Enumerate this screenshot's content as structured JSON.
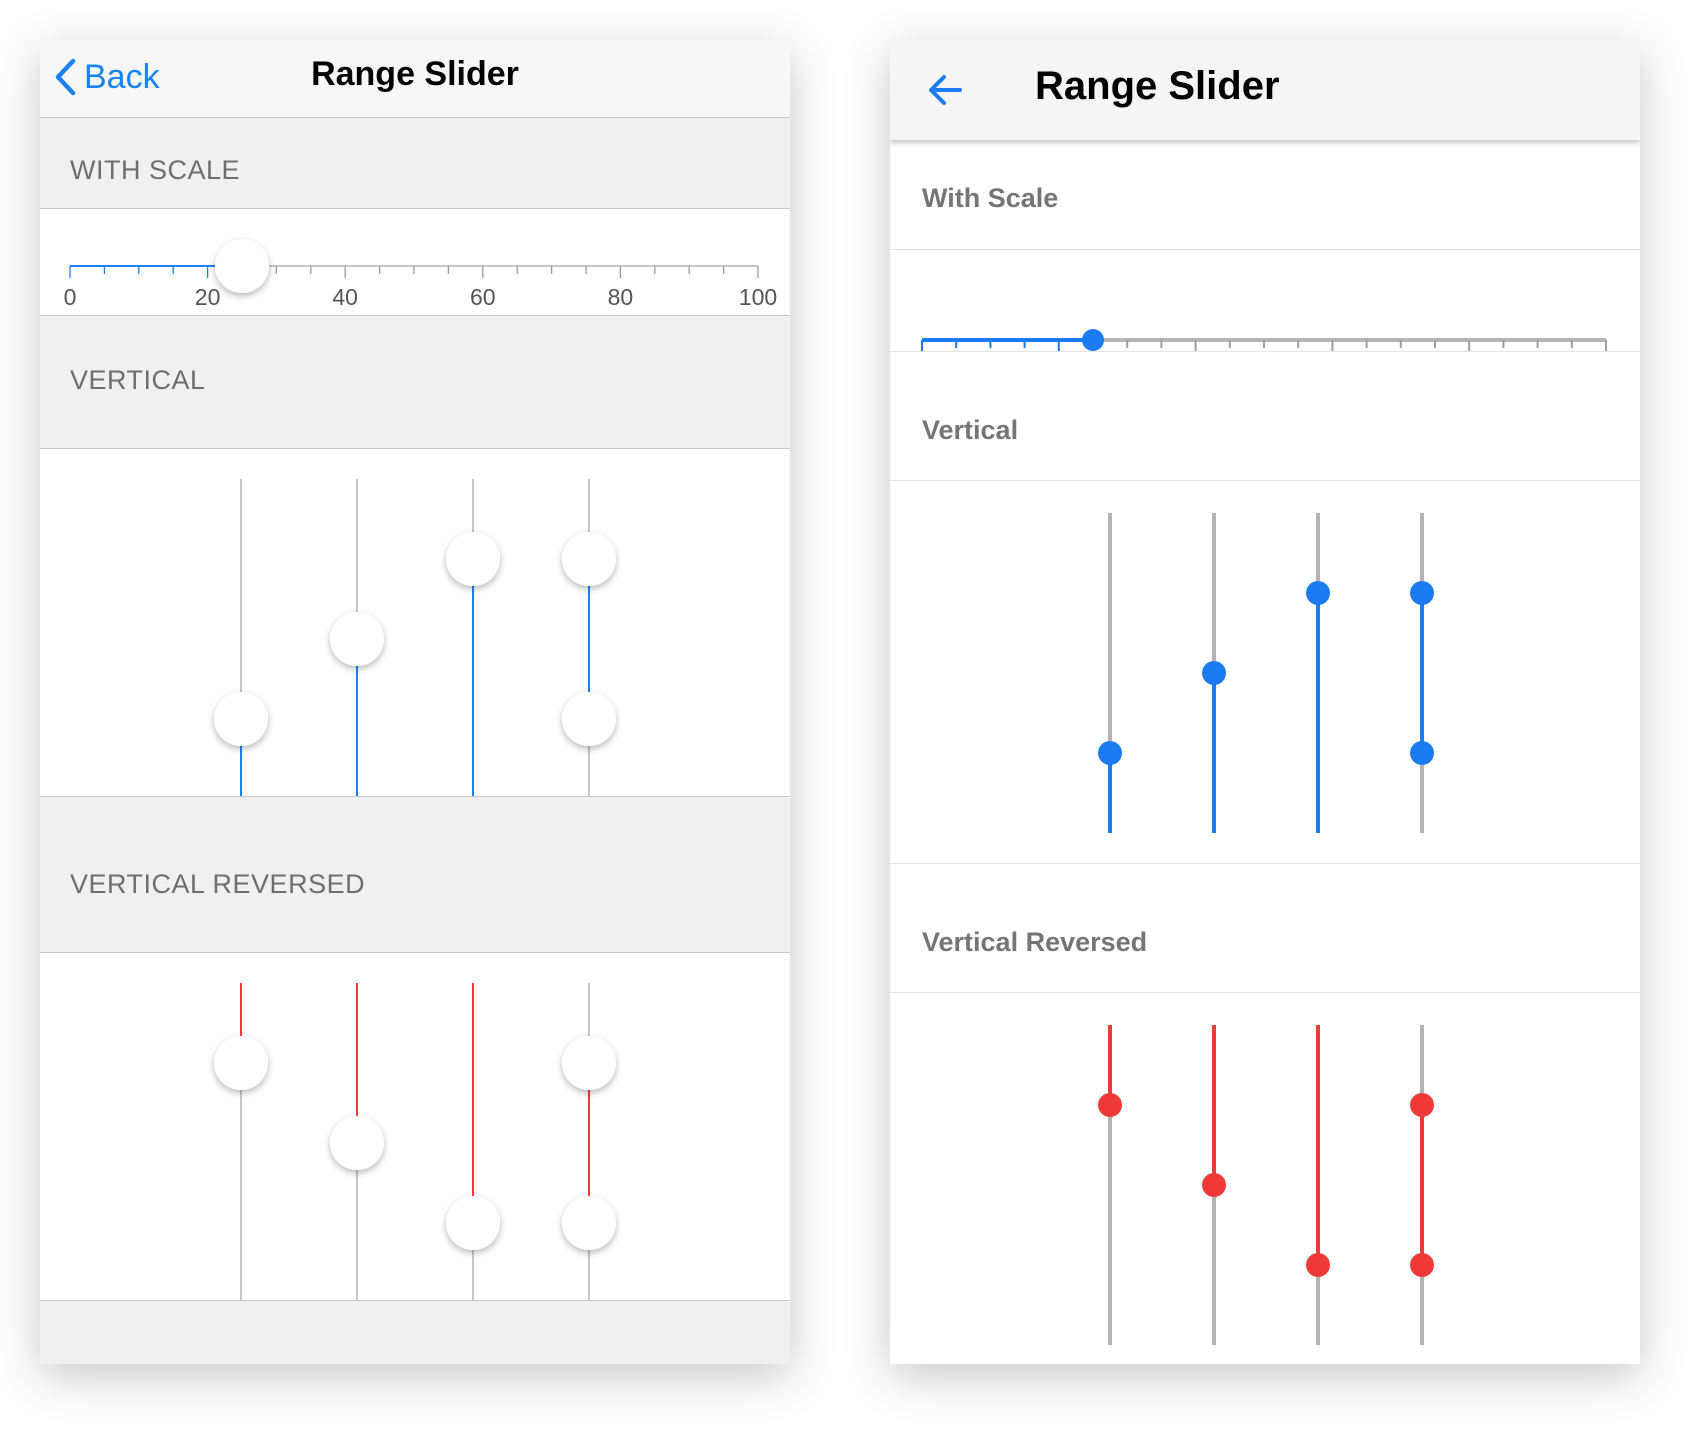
{
  "ios": {
    "back_label": "Back",
    "title": "Range Slider",
    "sections": {
      "with_scale": "WITH SCALE",
      "vertical": "VERTICAL",
      "vertical_reversed": "VERTICAL REVERSED"
    }
  },
  "android": {
    "back_icon": "arrow-left-icon",
    "title": "Range Slider",
    "sections": {
      "with_scale": "With Scale",
      "vertical": "Vertical",
      "vertical_reversed": "Vertical Reversed"
    }
  },
  "colors": {
    "ios_accent": "#1a82f7",
    "android_accent": "#1a7bf2",
    "reversed_accent": "#f03a3a",
    "track": "#b4b4b4"
  },
  "scale": {
    "min": 0,
    "max": 100,
    "major_labels": [
      "0",
      "20",
      "40",
      "60",
      "80",
      "100"
    ],
    "minor_tick_count": 21,
    "value": 25
  },
  "vertical_sliders": [
    {
      "low": 0,
      "high": 25
    },
    {
      "low": 0,
      "high": 50
    },
    {
      "low": 0,
      "high": 75
    },
    {
      "low": 25,
      "high": 75
    }
  ],
  "vertical_reversed_sliders": [
    {
      "low": 0,
      "high": 25
    },
    {
      "low": 0,
      "high": 50
    },
    {
      "low": 0,
      "high": 75
    },
    {
      "low": 25,
      "high": 75
    }
  ]
}
